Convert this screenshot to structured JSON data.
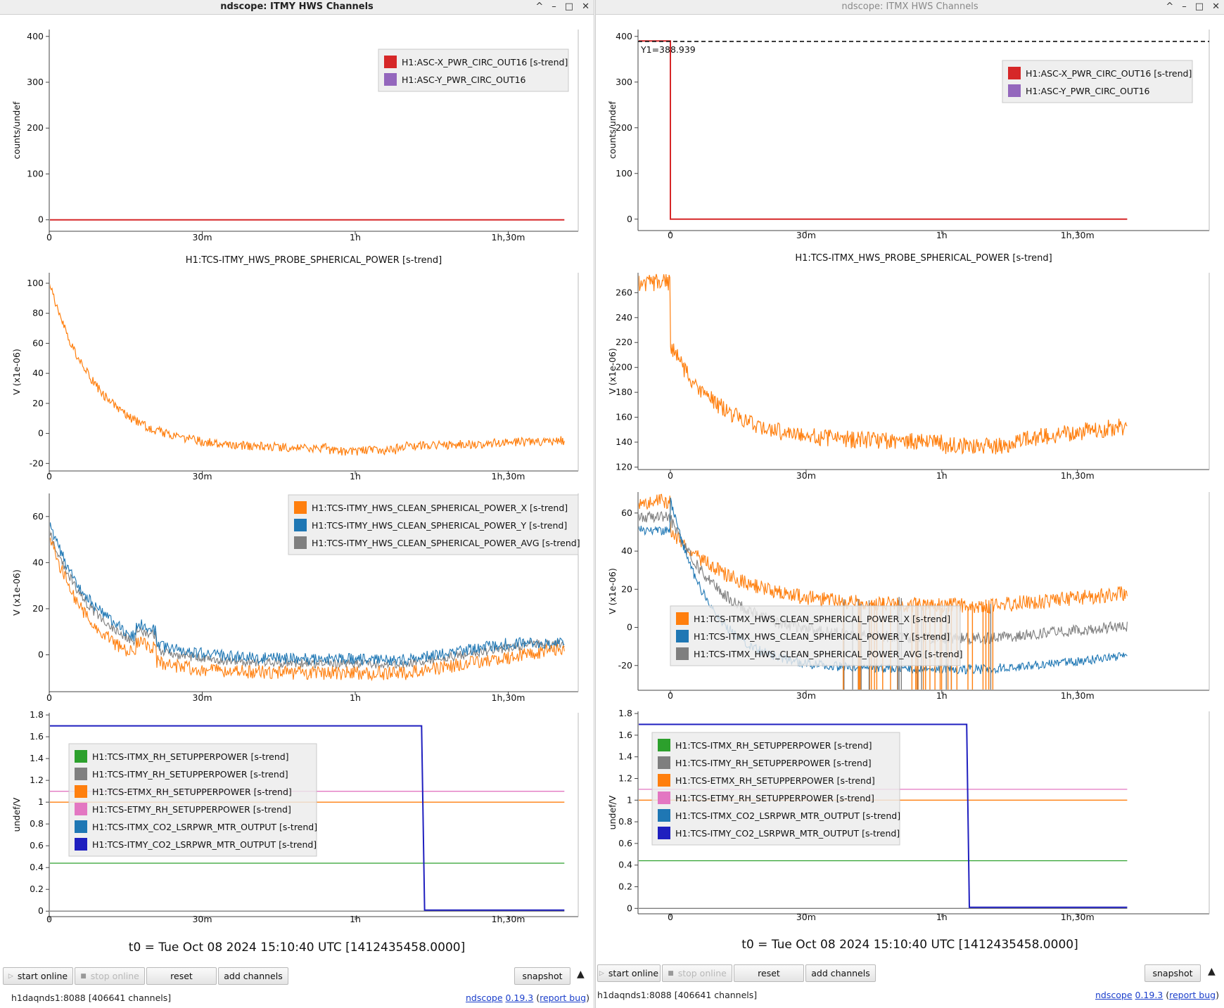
{
  "windows": [
    {
      "id": "left",
      "title": "ndscope: ITMY HWS Channels",
      "active": true,
      "controls": [
        "^",
        "–",
        "□",
        "✕"
      ],
      "plots": [
        {
          "ylabel": "counts/undef",
          "ylim": [
            -25,
            415
          ],
          "yticks": [
            "400",
            "300",
            "200",
            "100",
            "0"
          ],
          "ytick_values": [
            400,
            300,
            200,
            100,
            0
          ],
          "xticks": [
            "0",
            "30m",
            "1h",
            "1h,30m"
          ],
          "title": "",
          "legend": [
            {
              "label": "H1:ASC-X_PWR_CIRC_OUT16 [s-trend]",
              "color": "#d62728"
            },
            {
              "label": "H1:ASC-Y_PWR_CIRC_OUT16",
              "color": "#9467bd"
            }
          ]
        },
        {
          "ylabel": "V (x1e-06)",
          "ylim": [
            -25,
            107
          ],
          "yticks": [
            "100",
            "80",
            "60",
            "40",
            "20",
            "0",
            "-20"
          ],
          "ytick_values": [
            100,
            80,
            60,
            40,
            20,
            0,
            -20
          ],
          "xticks": [
            "0",
            "30m",
            "1h",
            "1h,30m"
          ],
          "title": "H1:TCS-ITMY_HWS_PROBE_SPHERICAL_POWER [s-trend]",
          "legend": []
        },
        {
          "ylabel": "V (x1e-06)",
          "ylim": [
            -16,
            70
          ],
          "yticks": [
            "60",
            "40",
            "20",
            "0"
          ],
          "ytick_values": [
            60,
            40,
            20,
            0
          ],
          "xticks": [
            "0",
            "30m",
            "1h",
            "1h,30m"
          ],
          "title": "",
          "legend": [
            {
              "label": "H1:TCS-ITMY_HWS_CLEAN_SPHERICAL_POWER_X [s-trend]",
              "color": "#ff7f0e"
            },
            {
              "label": "H1:TCS-ITMY_HWS_CLEAN_SPHERICAL_POWER_Y [s-trend]",
              "color": "#1f77b4"
            },
            {
              "label": "H1:TCS-ITMY_HWS_CLEAN_SPHERICAL_POWER_AVG [s-trend]",
              "color": "#7f7f7f"
            }
          ]
        },
        {
          "ylabel": "undef/V",
          "ylim": [
            -0.05,
            1.82
          ],
          "yticks": [
            "1.8",
            "1.6",
            "1.4",
            "1.2",
            "1",
            "0.8",
            "0.6",
            "0.4",
            "0.2",
            "0"
          ],
          "ytick_values": [
            1.8,
            1.6,
            1.4,
            1.2,
            1.0,
            0.8,
            0.6,
            0.4,
            0.2,
            0
          ],
          "xticks": [
            "0",
            "30m",
            "1h",
            "1h,30m"
          ],
          "title": "",
          "legend": [
            {
              "label": "H1:TCS-ITMX_RH_SETUPPERPOWER [s-trend]",
              "color": "#2ca02c"
            },
            {
              "label": "H1:TCS-ITMY_RH_SETUPPERPOWER [s-trend]",
              "color": "#7f7f7f"
            },
            {
              "label": "H1:TCS-ETMX_RH_SETUPPERPOWER [s-trend]",
              "color": "#ff7f0e"
            },
            {
              "label": "H1:TCS-ETMY_RH_SETUPPERPOWER [s-trend]",
              "color": "#e377c2"
            },
            {
              "label": "H1:TCS-ITMX_CO2_LSRPWR_MTR_OUTPUT [s-trend]",
              "color": "#1f77b4"
            },
            {
              "label": "H1:TCS-ITMY_CO2_LSRPWR_MTR_OUTPUT [s-trend]",
              "color": "#1f1fbf"
            }
          ]
        }
      ],
      "t0_label": "t0 = Tue Oct 08 2024 15:10:40 UTC [1412435458.0000]",
      "buttons": {
        "start": "start online",
        "stop": "stop online",
        "reset": "reset",
        "add": "add channels",
        "snapshot": "snapshot"
      },
      "status": {
        "server": "h1daqnds1:8088  [406641 channels]",
        "app": "ndscope",
        "version": "0.19.3",
        "report": "report bug"
      }
    },
    {
      "id": "right",
      "title": "ndscope: ITMX HWS Channels",
      "active": false,
      "controls": [
        "^",
        "–",
        "□",
        "✕"
      ],
      "plots": [
        {
          "ylabel": "counts/undef",
          "ylim": [
            -25,
            415
          ],
          "yticks": [
            "400",
            "300",
            "200",
            "100",
            "0"
          ],
          "ytick_values": [
            400,
            300,
            200,
            100,
            0
          ],
          "xticks": [
            "0",
            "30m",
            "1h",
            "1h,30m"
          ],
          "title": "",
          "cursor_label": "Y1=388.939",
          "legend": [
            {
              "label": "H1:ASC-X_PWR_CIRC_OUT16 [s-trend]",
              "color": "#d62728"
            },
            {
              "label": "H1:ASC-Y_PWR_CIRC_OUT16",
              "color": "#9467bd"
            }
          ]
        },
        {
          "ylabel": "V (x1e-06)",
          "ylim": [
            118,
            276
          ],
          "yticks": [
            "260",
            "240",
            "220",
            "200",
            "180",
            "160",
            "140",
            "120"
          ],
          "ytick_values": [
            260,
            240,
            220,
            200,
            180,
            160,
            140,
            120
          ],
          "xticks": [
            "0",
            "30m",
            "1h",
            "1h,30m"
          ],
          "title": "H1:TCS-ITMX_HWS_PROBE_SPHERICAL_POWER [s-trend]",
          "legend": []
        },
        {
          "ylabel": "V (x1e-06)",
          "ylim": [
            -33,
            71
          ],
          "yticks": [
            "60",
            "40",
            "20",
            "0",
            "-20"
          ],
          "ytick_values": [
            60,
            40,
            20,
            0,
            -20
          ],
          "xticks": [
            "0",
            "30m",
            "1h",
            "1h,30m"
          ],
          "title": "",
          "legend": [
            {
              "label": "H1:TCS-ITMX_HWS_CLEAN_SPHERICAL_POWER_X [s-trend]",
              "color": "#ff7f0e"
            },
            {
              "label": "H1:TCS-ITMX_HWS_CLEAN_SPHERICAL_POWER_Y [s-trend]",
              "color": "#1f77b4"
            },
            {
              "label": "H1:TCS-ITMX_HWS_CLEAN_SPHERICAL_POWER_AVG [s-trend]",
              "color": "#7f7f7f"
            }
          ]
        },
        {
          "ylabel": "undef/V",
          "ylim": [
            -0.05,
            1.82
          ],
          "yticks": [
            "1.8",
            "1.6",
            "1.4",
            "1.2",
            "1",
            "0.8",
            "0.6",
            "0.4",
            "0.2",
            "0"
          ],
          "ytick_values": [
            1.8,
            1.6,
            1.4,
            1.2,
            1.0,
            0.8,
            0.6,
            0.4,
            0.2,
            0
          ],
          "xticks": [
            "0",
            "30m",
            "1h",
            "1h,30m"
          ],
          "title": "",
          "legend": [
            {
              "label": "H1:TCS-ITMX_RH_SETUPPERPOWER [s-trend]",
              "color": "#2ca02c"
            },
            {
              "label": "H1:TCS-ITMY_RH_SETUPPERPOWER [s-trend]",
              "color": "#7f7f7f"
            },
            {
              "label": "H1:TCS-ETMX_RH_SETUPPERPOWER [s-trend]",
              "color": "#ff7f0e"
            },
            {
              "label": "H1:TCS-ETMY_RH_SETUPPERPOWER [s-trend]",
              "color": "#e377c2"
            },
            {
              "label": "H1:TCS-ITMX_CO2_LSRPWR_MTR_OUTPUT [s-trend]",
              "color": "#1f77b4"
            },
            {
              "label": "H1:TCS-ITMY_CO2_LSRPWR_MTR_OUTPUT [s-trend]",
              "color": "#1f1fbf"
            }
          ]
        }
      ],
      "t0_label": "t0 = Tue Oct 08 2024 15:10:40 UTC [1412435458.0000]",
      "buttons": {
        "start": "start online",
        "stop": "stop online",
        "reset": "reset",
        "add": "add channels",
        "snapshot": "snapshot"
      },
      "status": {
        "server": "h1daqnds1:8088  [406641 channels]",
        "app": "ndscope",
        "version": "0.19.3",
        "report": "report bug"
      }
    }
  ]
}
